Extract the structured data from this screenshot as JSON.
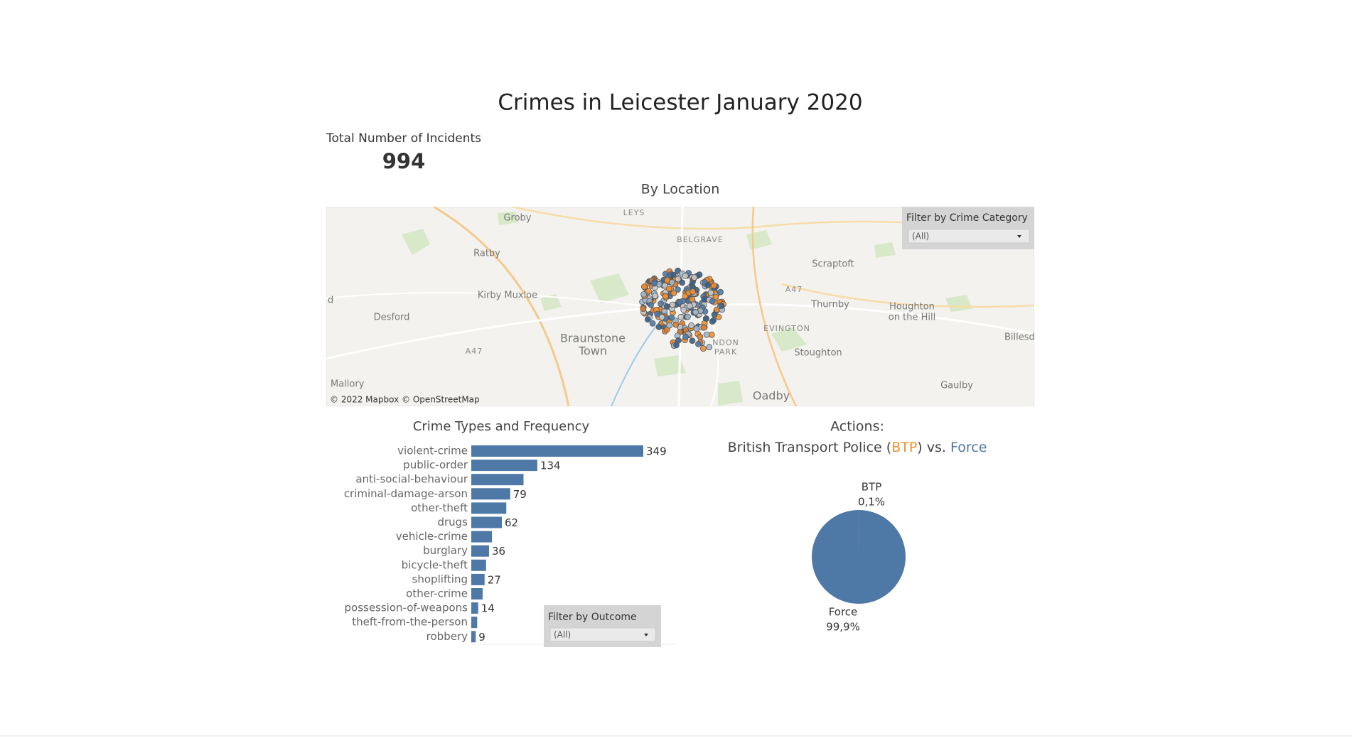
{
  "title": "Crimes in Leicester January 2020",
  "kpi": {
    "label": "Total Number of Incidents",
    "value": 994
  },
  "map": {
    "title": "By Location",
    "place_labels": [
      "Groby",
      "LEYS",
      "BELGRAVE",
      "Ratby",
      "Scraptoft",
      "A47",
      "Kirby Muxloe",
      "Thurnby",
      "Houghton",
      "on the Hill",
      "d",
      "Desford",
      "Braunstone",
      "Town",
      "EVINGTON",
      "NDON",
      "PARK",
      "Billesdo",
      "Stoughton",
      "A47",
      "Mallory",
      "Gaulby",
      "Oadby"
    ],
    "attribution": "© 2022 Mapbox © OpenStreetMap",
    "filter": {
      "label": "Filter by Crime Category",
      "value": "(All)"
    }
  },
  "outcome_filter": {
    "label": "Filter by Outcome",
    "value": "(All)"
  },
  "chart_data": [
    {
      "type": "bar",
      "orientation": "horizontal",
      "title": "Crime Types and Frequency",
      "categories": [
        "violent-crime",
        "public-order",
        "anti-social-behaviour",
        "criminal-damage-arson",
        "other-theft",
        "drugs",
        "vehicle-crime",
        "burglary",
        "bicycle-theft",
        "shoplifting",
        "other-crime",
        "possession-of-weapons",
        "theft-from-the-person",
        "robbery"
      ],
      "values": [
        349,
        134,
        106,
        79,
        71,
        62,
        42,
        36,
        30,
        27,
        23,
        14,
        12,
        9
      ],
      "value_labels": [
        "349",
        "134",
        null,
        "79",
        null,
        "62",
        null,
        "36",
        null,
        "27",
        null,
        "14",
        null,
        "9"
      ],
      "color": "#4e79a7"
    },
    {
      "type": "pie",
      "title": "Actions:",
      "subtitle": [
        "British Transport Police (",
        "BTP",
        ") vs. ",
        "Force"
      ],
      "categories": [
        "BTP",
        "Force"
      ],
      "values": [
        0.1,
        99.9
      ],
      "value_labels": [
        "0,1%",
        "99,9%"
      ],
      "colors": [
        "#f28e2b",
        "#4e79a7"
      ]
    }
  ]
}
